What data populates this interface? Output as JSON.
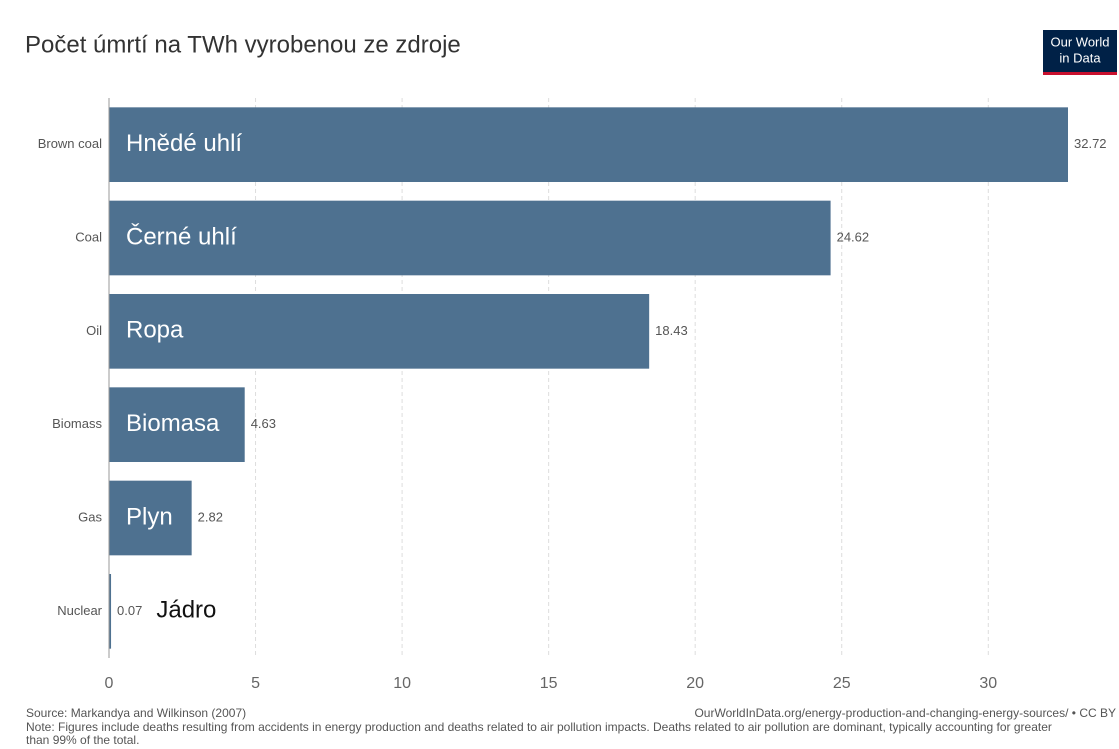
{
  "chart_data": {
    "type": "barh",
    "title": "Počet úmrtí na TWh vyrobenou ze zdroje",
    "logo": [
      "Our World",
      "in Data"
    ],
    "categories": [
      "Brown coal",
      "Coal",
      "Oil",
      "Biomass",
      "Gas",
      "Nuclear"
    ],
    "bar_labels": [
      "Hnědé uhlí",
      "Černé uhlí",
      "Ropa",
      "Biomasa",
      "Plyn",
      "Jádro"
    ],
    "values": [
      32.72,
      24.62,
      18.43,
      4.63,
      2.82,
      0.07
    ],
    "color": "#4e7190",
    "xlim": [
      0,
      32.72
    ],
    "xticks": [
      0,
      5,
      10,
      15,
      20,
      25,
      30
    ],
    "grid": true,
    "source": "Source: Markandya and Wilkinson (2007)",
    "url": "OurWorldInData.org/energy-production-and-changing-energy-sources/ • CC BY",
    "note": "Note: Figures include deaths resulting from accidents in energy production and deaths related to air pollution impacts. Deaths related to air pollution are dominant, typically accounting for greater than 99% of the total."
  }
}
